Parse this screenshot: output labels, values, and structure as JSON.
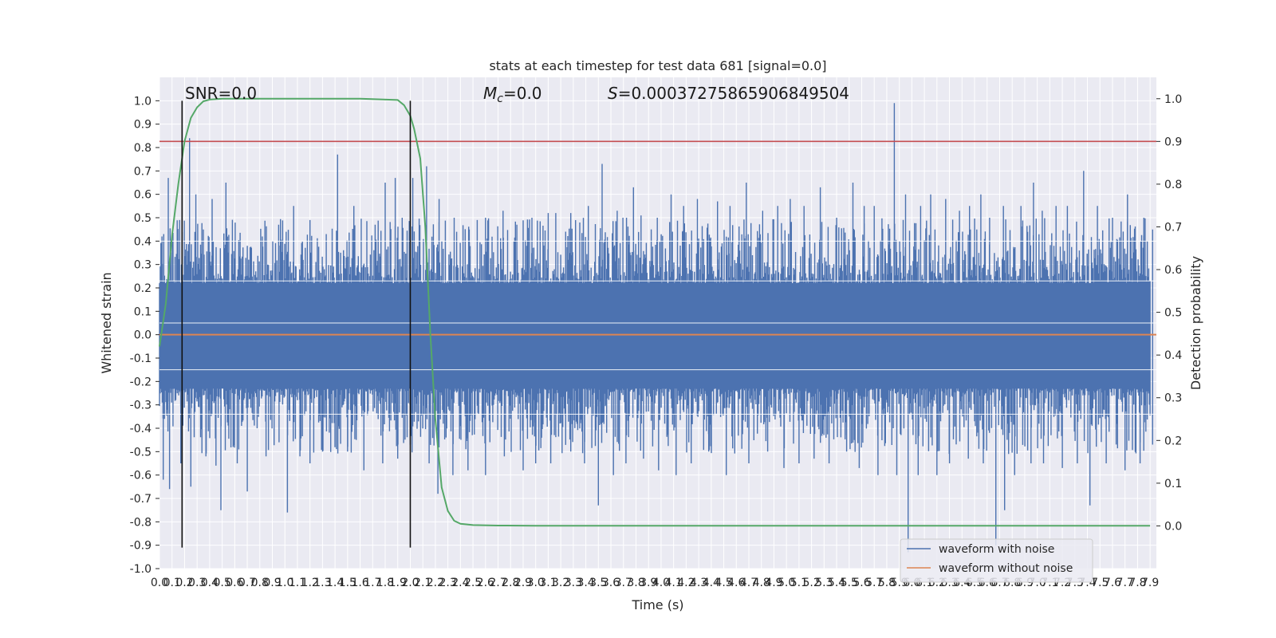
{
  "chart_data": {
    "type": "line",
    "title": "stats at each timestep for test data 681 [signal=0.0]",
    "xlabel": "Time (s)",
    "ylabel": "Whitened strain",
    "y2label": "Detection probability",
    "xlim": [
      0.0,
      7.95
    ],
    "ylim": [
      -1.0,
      1.1
    ],
    "y2lim": [
      -0.1,
      1.05
    ],
    "x_ticks": [
      0.0,
      0.1,
      0.2,
      0.3,
      0.4,
      0.5,
      0.6,
      0.7,
      0.8,
      0.9,
      1.0,
      1.1,
      1.2,
      1.3,
      1.4,
      1.5,
      1.6,
      1.7,
      1.8,
      1.9,
      2.0,
      2.1,
      2.2,
      2.3,
      2.4,
      2.5,
      2.6,
      2.7,
      2.8,
      2.9,
      3.0,
      3.1,
      3.2,
      3.3,
      3.4,
      3.5,
      3.6,
      3.7,
      3.8,
      3.9,
      4.0,
      4.1,
      4.2,
      4.3,
      4.4,
      4.5,
      4.6,
      4.7,
      4.8,
      4.9,
      5.0,
      5.1,
      5.2,
      5.3,
      5.4,
      5.5,
      5.6,
      5.7,
      5.8,
      5.9,
      6.0,
      6.1,
      6.2,
      6.3,
      6.4,
      6.5,
      6.6,
      6.7,
      6.8,
      6.9,
      7.0,
      7.1,
      7.2,
      7.3,
      7.4,
      7.5,
      7.6,
      7.7,
      7.8,
      7.9
    ],
    "y_ticks": [
      -1.0,
      -0.9,
      -0.8,
      -0.7,
      -0.6,
      -0.5,
      -0.4,
      -0.3,
      -0.2,
      -0.1,
      0.0,
      0.1,
      0.2,
      0.3,
      0.4,
      0.5,
      0.6,
      0.7,
      0.8,
      0.9,
      1.0
    ],
    "y2_ticks": [
      0.0,
      0.1,
      0.2,
      0.3,
      0.4,
      0.5,
      0.6,
      0.7,
      0.8,
      0.9,
      1.0
    ],
    "noise_waveform": {
      "name": "waveform with noise",
      "color": "#4c72b0",
      "band_min": -0.23,
      "band_max": 0.22,
      "peaks_top": [
        [
          0.02,
          0.42
        ],
        [
          0.07,
          0.67
        ],
        [
          0.16,
          0.49
        ],
        [
          0.24,
          0.84
        ],
        [
          0.29,
          0.6
        ],
        [
          0.35,
          0.45
        ],
        [
          0.42,
          0.58
        ],
        [
          0.53,
          0.65
        ],
        [
          0.7,
          0.38
        ],
        [
          0.82,
          0.42
        ],
        [
          0.95,
          0.47
        ],
        [
          1.07,
          0.55
        ],
        [
          1.2,
          0.49
        ],
        [
          1.33,
          0.43
        ],
        [
          1.42,
          0.77
        ],
        [
          1.55,
          0.55
        ],
        [
          1.72,
          0.47
        ],
        [
          1.8,
          0.65
        ],
        [
          1.88,
          0.67
        ],
        [
          2.02,
          0.67
        ],
        [
          2.13,
          0.72
        ],
        [
          2.23,
          0.58
        ],
        [
          2.35,
          0.5
        ],
        [
          2.47,
          0.45
        ],
        [
          2.6,
          0.5
        ],
        [
          2.74,
          0.53
        ],
        [
          2.85,
          0.47
        ],
        [
          2.97,
          0.5
        ],
        [
          3.1,
          0.52
        ],
        [
          3.16,
          0.52
        ],
        [
          3.28,
          0.52
        ],
        [
          3.42,
          0.55
        ],
        [
          3.53,
          0.73
        ],
        [
          3.65,
          0.53
        ],
        [
          3.78,
          0.63
        ],
        [
          3.84,
          0.51
        ],
        [
          3.97,
          0.5
        ],
        [
          4.08,
          0.6
        ],
        [
          4.18,
          0.55
        ],
        [
          4.29,
          0.58
        ],
        [
          4.45,
          0.57
        ],
        [
          4.55,
          0.55
        ],
        [
          4.68,
          0.65
        ],
        [
          4.81,
          0.53
        ],
        [
          4.93,
          0.55
        ],
        [
          5.03,
          0.58
        ],
        [
          5.14,
          0.55
        ],
        [
          5.27,
          0.63
        ],
        [
          5.4,
          0.5
        ],
        [
          5.53,
          0.65
        ],
        [
          5.62,
          0.55
        ],
        [
          5.7,
          0.55
        ],
        [
          5.86,
          0.99
        ],
        [
          5.95,
          0.6
        ],
        [
          6.07,
          0.55
        ],
        [
          6.15,
          0.6
        ],
        [
          6.27,
          0.58
        ],
        [
          6.38,
          0.53
        ],
        [
          6.46,
          0.55
        ],
        [
          6.55,
          0.6
        ],
        [
          6.62,
          0.5
        ],
        [
          6.73,
          0.55
        ],
        [
          6.87,
          0.55
        ],
        [
          6.97,
          0.65
        ],
        [
          7.04,
          0.53
        ],
        [
          7.15,
          0.55
        ],
        [
          7.24,
          0.55
        ],
        [
          7.37,
          0.7
        ],
        [
          7.48,
          0.55
        ],
        [
          7.6,
          0.5
        ],
        [
          7.72,
          0.6
        ],
        [
          7.85,
          0.5
        ],
        [
          7.92,
          0.45
        ]
      ],
      "peaks_bottom": [
        [
          0.03,
          -0.62
        ],
        [
          0.08,
          -0.66
        ],
        [
          0.17,
          -0.55
        ],
        [
          0.25,
          -0.65
        ],
        [
          0.37,
          -0.52
        ],
        [
          0.45,
          -0.56
        ],
        [
          0.49,
          -0.75
        ],
        [
          0.62,
          -0.55
        ],
        [
          0.7,
          -0.67
        ],
        [
          0.85,
          -0.52
        ],
        [
          1.02,
          -0.76
        ],
        [
          1.12,
          -0.52
        ],
        [
          1.2,
          -0.55
        ],
        [
          1.3,
          -0.5
        ],
        [
          1.5,
          -0.5
        ],
        [
          1.63,
          -0.58
        ],
        [
          1.78,
          -0.55
        ],
        [
          1.9,
          -0.53
        ],
        [
          2.0,
          -0.47
        ],
        [
          2.15,
          -0.55
        ],
        [
          2.22,
          -0.68
        ],
        [
          2.34,
          -0.6
        ],
        [
          2.46,
          -0.58
        ],
        [
          2.6,
          -0.6
        ],
        [
          2.75,
          -0.52
        ],
        [
          2.9,
          -0.58
        ],
        [
          3.0,
          -0.55
        ],
        [
          3.12,
          -0.55
        ],
        [
          3.28,
          -0.5
        ],
        [
          3.39,
          -0.55
        ],
        [
          3.5,
          -0.73
        ],
        [
          3.62,
          -0.6
        ],
        [
          3.72,
          -0.55
        ],
        [
          3.86,
          -0.53
        ],
        [
          3.98,
          -0.58
        ],
        [
          4.12,
          -0.6
        ],
        [
          4.24,
          -0.55
        ],
        [
          4.38,
          -0.5
        ],
        [
          4.52,
          -0.6
        ],
        [
          4.7,
          -0.55
        ],
        [
          4.85,
          -0.5
        ],
        [
          4.98,
          -0.57
        ],
        [
          5.1,
          -0.55
        ],
        [
          5.22,
          -0.53
        ],
        [
          5.34,
          -0.55
        ],
        [
          5.48,
          -0.5
        ],
        [
          5.58,
          -0.57
        ],
        [
          5.73,
          -0.6
        ],
        [
          5.88,
          -0.6
        ],
        [
          5.97,
          -0.93
        ],
        [
          6.05,
          -0.6
        ],
        [
          6.2,
          -0.6
        ],
        [
          6.3,
          -0.55
        ],
        [
          6.45,
          -0.53
        ],
        [
          6.57,
          -0.55
        ],
        [
          6.67,
          -0.9
        ],
        [
          6.74,
          -0.75
        ],
        [
          6.82,
          -0.6
        ],
        [
          6.95,
          -0.55
        ],
        [
          7.05,
          -0.55
        ],
        [
          7.2,
          -0.57
        ],
        [
          7.32,
          -0.55
        ],
        [
          7.42,
          -0.73
        ],
        [
          7.55,
          -0.55
        ],
        [
          7.7,
          -0.58
        ],
        [
          7.82,
          -0.55
        ],
        [
          7.92,
          -0.47
        ]
      ]
    },
    "clean_waveform": {
      "name": "waveform without noise",
      "color": "#dd8452",
      "x": [
        0.0,
        7.95
      ],
      "y": [
        0.0,
        0.0
      ]
    },
    "probability": {
      "color": "#55a868",
      "x": [
        0.0,
        0.05,
        0.1,
        0.15,
        0.2,
        0.25,
        0.3,
        0.35,
        0.4,
        0.5,
        0.8,
        1.2,
        1.6,
        1.9,
        1.95,
        2.0,
        2.03,
        2.08,
        2.12,
        2.16,
        2.2,
        2.25,
        2.3,
        2.35,
        2.4,
        2.5,
        2.7,
        3.0,
        4.0,
        5.0,
        6.0,
        7.0,
        7.9
      ],
      "y": [
        0.42,
        0.52,
        0.68,
        0.8,
        0.9,
        0.955,
        0.98,
        0.994,
        0.998,
        1.0,
        1.0,
        1.0,
        1.0,
        0.997,
        0.985,
        0.96,
        0.93,
        0.86,
        0.7,
        0.45,
        0.25,
        0.09,
        0.035,
        0.012,
        0.005,
        0.002,
        0.0008,
        0.0005,
        0.0005,
        0.0005,
        0.0005,
        0.0005,
        0.0005
      ]
    },
    "threshold": {
      "color": "#c44e52",
      "y2": 0.9
    },
    "vertical_markers": {
      "color": "#111111",
      "x": [
        0.18,
        2.0
      ],
      "y_range": [
        -0.91,
        1.0
      ]
    },
    "annotations": {
      "snr": "SNR=0.0",
      "mc_symbol": "M",
      "mc_sub": "c",
      "mc_value": "=0.0",
      "s_symbol": "S",
      "s_value": "=0.00037275865906849504"
    },
    "legend": {
      "placement": "lower-right",
      "entries": [
        "waveform with noise",
        "waveform without noise"
      ]
    },
    "grid": true
  }
}
